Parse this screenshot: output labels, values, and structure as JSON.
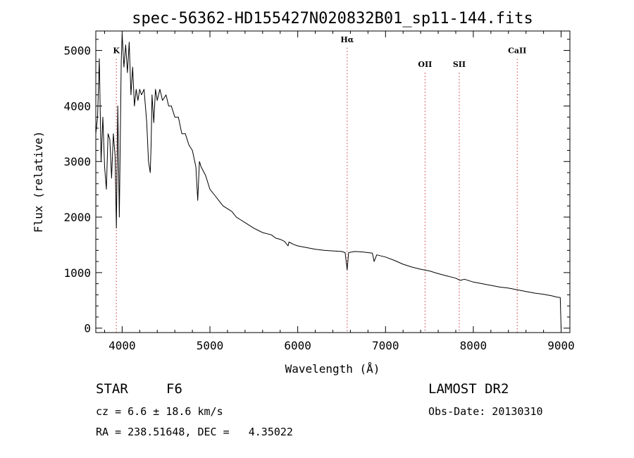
{
  "chart_data": {
    "type": "line",
    "title": "spec-56362-HD155427N020832B01_sp11-144.fits",
    "xlabel": "Wavelength (Å)",
    "ylabel": "Flux (relative)",
    "xlim": [
      3700,
      9100
    ],
    "ylim": [
      -80,
      5350
    ],
    "x_ticks": [
      4000,
      5000,
      6000,
      7000,
      8000,
      9000
    ],
    "y_ticks": [
      0,
      1000,
      2000,
      3000,
      4000,
      5000
    ],
    "grid": false,
    "line_color": "#000000",
    "marker_color": "#cc3333",
    "lines": [
      {
        "name": "K",
        "wavelength": 3934,
        "label_flux": 4950
      },
      {
        "name": "Hα",
        "wavelength": 6563,
        "label_flux": 5150
      },
      {
        "name": "OII",
        "wavelength": 7450,
        "label_flux": 4700
      },
      {
        "name": "SII",
        "wavelength": 7840,
        "label_flux": 4700
      },
      {
        "name": "CaII",
        "wavelength": 8500,
        "label_flux": 4950
      }
    ],
    "series": [
      {
        "x": [
          3700,
          3720,
          3740,
          3760,
          3780,
          3800,
          3820,
          3840,
          3860,
          3880,
          3900,
          3920,
          3934,
          3950,
          3968,
          3990,
          4000,
          4020,
          4040,
          4060,
          4080,
          4100,
          4120,
          4140,
          4160,
          4180,
          4200,
          4220,
          4250,
          4280,
          4300,
          4320,
          4330,
          4340,
          4360,
          4380,
          4400,
          4430,
          4460,
          4500,
          4530,
          4560,
          4600,
          4640,
          4680,
          4720,
          4760,
          4800,
          4840,
          4861,
          4880,
          4900,
          4950,
          5000,
          5050,
          5100,
          5150,
          5200,
          5250,
          5300,
          5350,
          5400,
          5450,
          5500,
          5550,
          5600,
          5650,
          5700,
          5750,
          5800,
          5850,
          5890,
          5900,
          5950,
          6000,
          6100,
          6200,
          6300,
          6400,
          6500,
          6540,
          6563,
          6580,
          6650,
          6750,
          6850,
          6870,
          6900,
          7000,
          7100,
          7200,
          7300,
          7400,
          7500,
          7600,
          7700,
          7800,
          7850,
          7900,
          8000,
          8100,
          8200,
          8300,
          8400,
          8500,
          8600,
          8700,
          8800,
          8900,
          8950,
          8990,
          9000
        ],
        "y": [
          3500,
          3800,
          4850,
          3000,
          3800,
          2900,
          2500,
          3500,
          3400,
          2700,
          3500,
          3100,
          1800,
          4000,
          2000,
          4800,
          5300,
          4700,
          5100,
          4600,
          5150,
          4200,
          4700,
          4000,
          4300,
          4100,
          4300,
          4200,
          4300,
          3700,
          3000,
          2800,
          3300,
          4200,
          3700,
          4300,
          4100,
          4300,
          4100,
          4200,
          4000,
          4000,
          3800,
          3800,
          3500,
          3500,
          3300,
          3200,
          2900,
          2300,
          3000,
          2900,
          2750,
          2500,
          2400,
          2300,
          2200,
          2150,
          2100,
          2000,
          1950,
          1900,
          1850,
          1800,
          1760,
          1720,
          1700,
          1680,
          1620,
          1600,
          1560,
          1480,
          1550,
          1510,
          1480,
          1450,
          1420,
          1400,
          1390,
          1380,
          1360,
          1050,
          1360,
          1380,
          1370,
          1350,
          1200,
          1320,
          1280,
          1220,
          1150,
          1100,
          1060,
          1030,
          980,
          940,
          900,
          860,
          880,
          830,
          800,
          770,
          740,
          720,
          690,
          660,
          630,
          610,
          580,
          560,
          550,
          0
        ]
      }
    ]
  },
  "info": {
    "object_class": "STAR",
    "subclass": "F6",
    "survey": "LAMOST DR2",
    "cz": "cz = 6.6 ± 18.6 km/s",
    "obs_date": "Obs-Date: 20130310",
    "coords": "RA = 238.51648, DEC =   4.35022"
  }
}
